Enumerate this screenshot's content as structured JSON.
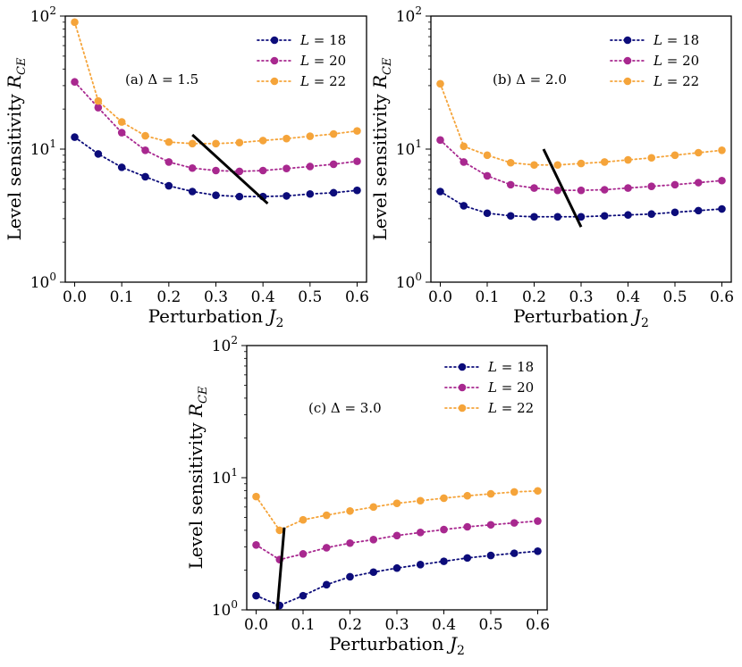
{
  "chart_data": [
    {
      "type": "line",
      "panel": "a",
      "annotation": "(a) Δ = 1.5",
      "xlabel": "Perturbation J",
      "xlabel_sub": "2",
      "ylabel": "Level sensitivity R",
      "ylabel_sub": "CE",
      "yscale": "log",
      "xlim": [
        -0.02,
        0.62
      ],
      "ylim": [
        1,
        100
      ],
      "x": [
        0.0,
        0.05,
        0.1,
        0.15,
        0.2,
        0.25,
        0.3,
        0.35,
        0.4,
        0.45,
        0.5,
        0.55,
        0.6
      ],
      "xticks": [
        "0.0",
        "0.1",
        "0.2",
        "0.3",
        "0.4",
        "0.5",
        "0.6"
      ],
      "yticks": [
        {
          "base": "10",
          "exp": "0"
        },
        {
          "base": "10",
          "exp": "1"
        },
        {
          "base": "10",
          "exp": "2"
        }
      ],
      "series": [
        {
          "name": "L = 18",
          "legend_var": "L",
          "legend_val": "= 18",
          "color": "#0c0c7a",
          "values": [
            12.3,
            9.2,
            7.3,
            6.2,
            5.3,
            4.8,
            4.5,
            4.4,
            4.4,
            4.45,
            4.6,
            4.7,
            4.9
          ]
        },
        {
          "name": "L = 20",
          "legend_var": "L",
          "legend_val": "= 20",
          "color": "#a8288f",
          "values": [
            32.0,
            20.5,
            13.3,
            9.8,
            8.0,
            7.2,
            6.9,
            6.8,
            6.9,
            7.15,
            7.4,
            7.7,
            8.1
          ]
        },
        {
          "name": "L = 22",
          "legend_var": "L",
          "legend_val": "= 22",
          "color": "#f5a43a",
          "values": [
            90.0,
            23.0,
            16.0,
            12.6,
            11.3,
            11.0,
            11.0,
            11.2,
            11.6,
            12.0,
            12.5,
            13.0,
            13.7
          ]
        }
      ],
      "guide_line": {
        "x": [
          0.25,
          0.41
        ],
        "y": [
          12.8,
          3.9
        ]
      }
    },
    {
      "type": "line",
      "panel": "b",
      "annotation": "(b) Δ = 2.0",
      "xlabel": "Perturbation J",
      "xlabel_sub": "2",
      "ylabel": "Level sensitivity R",
      "ylabel_sub": "CE",
      "yscale": "log",
      "xlim": [
        -0.02,
        0.62
      ],
      "ylim": [
        1,
        100
      ],
      "x": [
        0.0,
        0.05,
        0.1,
        0.15,
        0.2,
        0.25,
        0.3,
        0.35,
        0.4,
        0.45,
        0.5,
        0.55,
        0.6
      ],
      "xticks": [
        "0.0",
        "0.1",
        "0.2",
        "0.3",
        "0.4",
        "0.5",
        "0.6"
      ],
      "yticks": [
        {
          "base": "10",
          "exp": "0"
        },
        {
          "base": "10",
          "exp": "1"
        },
        {
          "base": "10",
          "exp": "2"
        }
      ],
      "series": [
        {
          "name": "L = 18",
          "legend_var": "L",
          "legend_val": "= 18",
          "color": "#0c0c7a",
          "values": [
            4.8,
            3.75,
            3.3,
            3.15,
            3.1,
            3.1,
            3.1,
            3.15,
            3.2,
            3.25,
            3.35,
            3.45,
            3.55
          ]
        },
        {
          "name": "L = 20",
          "legend_var": "L",
          "legend_val": "= 20",
          "color": "#a8288f",
          "values": [
            11.7,
            8.0,
            6.3,
            5.4,
            5.1,
            4.9,
            4.9,
            4.95,
            5.1,
            5.25,
            5.4,
            5.6,
            5.8
          ]
        },
        {
          "name": "L = 22",
          "legend_var": "L",
          "legend_val": "= 22",
          "color": "#f5a43a",
          "values": [
            31.0,
            10.5,
            9.0,
            7.9,
            7.6,
            7.6,
            7.8,
            8.0,
            8.3,
            8.6,
            9.0,
            9.4,
            9.8
          ]
        }
      ],
      "guide_line": {
        "x": [
          0.22,
          0.3
        ],
        "y": [
          10.0,
          2.6
        ]
      }
    },
    {
      "type": "line",
      "panel": "c",
      "annotation": "(c) Δ = 3.0",
      "xlabel": "Perturbation J",
      "xlabel_sub": "2",
      "ylabel": "Level sensitivity R",
      "ylabel_sub": "CE",
      "yscale": "log",
      "xlim": [
        -0.02,
        0.62
      ],
      "ylim": [
        1,
        100
      ],
      "x": [
        0.0,
        0.05,
        0.1,
        0.15,
        0.2,
        0.25,
        0.3,
        0.35,
        0.4,
        0.45,
        0.5,
        0.55,
        0.6
      ],
      "xticks": [
        "0.0",
        "0.1",
        "0.2",
        "0.3",
        "0.4",
        "0.5",
        "0.6"
      ],
      "yticks": [
        {
          "base": "10",
          "exp": "0"
        },
        {
          "base": "10",
          "exp": "1"
        },
        {
          "base": "10",
          "exp": "2"
        }
      ],
      "series": [
        {
          "name": "L = 18",
          "legend_var": "L",
          "legend_val": "= 18",
          "color": "#0c0c7a",
          "values": [
            1.28,
            1.08,
            1.28,
            1.55,
            1.78,
            1.93,
            2.07,
            2.2,
            2.33,
            2.47,
            2.58,
            2.68,
            2.78
          ]
        },
        {
          "name": "L = 20",
          "legend_var": "L",
          "legend_val": "= 20",
          "color": "#a8288f",
          "values": [
            3.1,
            2.4,
            2.65,
            2.95,
            3.2,
            3.4,
            3.65,
            3.85,
            4.05,
            4.25,
            4.4,
            4.55,
            4.7
          ]
        },
        {
          "name": "L = 22",
          "legend_var": "L",
          "legend_val": "= 22",
          "color": "#f5a43a",
          "values": [
            7.2,
            4.0,
            4.8,
            5.2,
            5.6,
            6.0,
            6.4,
            6.7,
            7.0,
            7.3,
            7.55,
            7.8,
            7.95
          ]
        }
      ],
      "guide_line": {
        "x": [
          0.045,
          0.06
        ],
        "y": [
          1.0,
          4.2
        ]
      }
    }
  ]
}
